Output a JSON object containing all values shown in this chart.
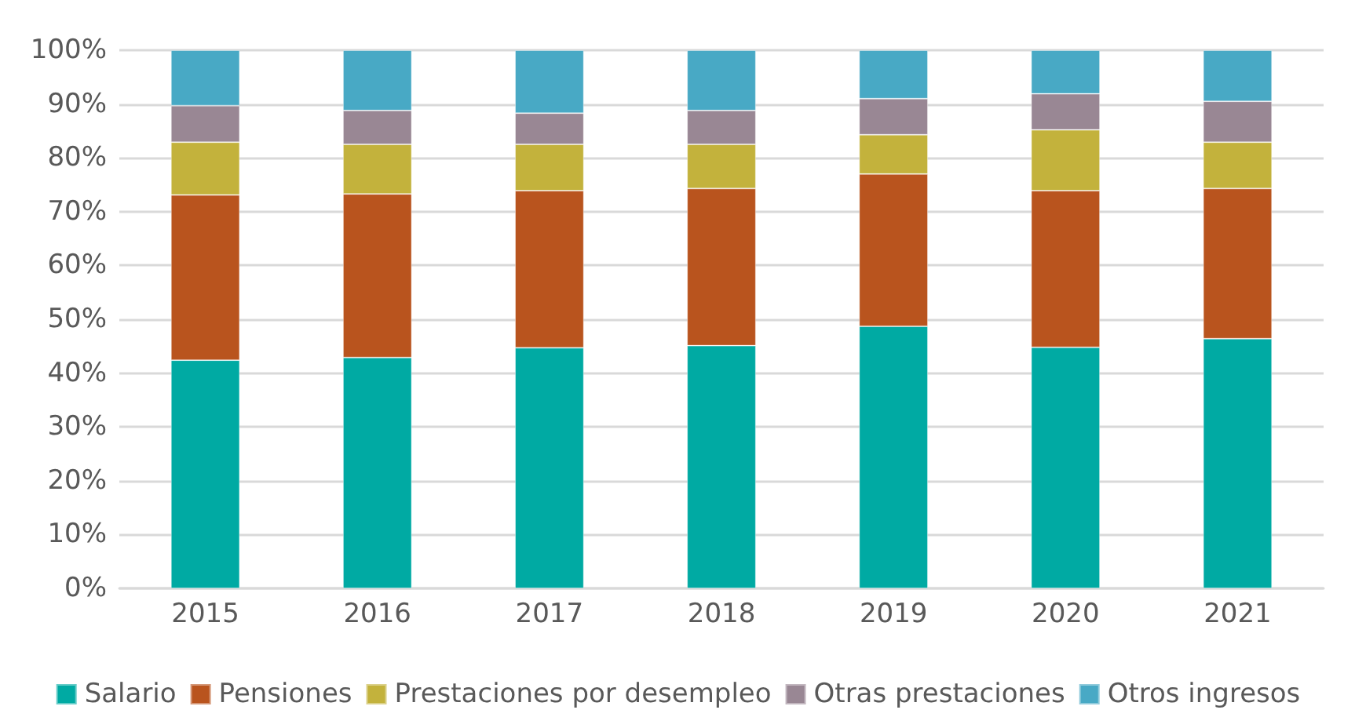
{
  "chart_data": {
    "type": "bar",
    "stacked": true,
    "categories": [
      "2015",
      "2016",
      "2017",
      "2018",
      "2019",
      "2020",
      "2021"
    ],
    "series": [
      {
        "name": "Salario",
        "color": "#00aaa3",
        "values": [
          42.4,
          42.9,
          44.7,
          45.1,
          48.7,
          44.8,
          46.4
        ]
      },
      {
        "name": "Pensiones",
        "color": "#b9541e",
        "values": [
          30.7,
          30.4,
          29.2,
          29.2,
          28.3,
          29.1,
          27.9
        ]
      },
      {
        "name": "Prestaciones por desempleo",
        "color": "#c3b23c",
        "values": [
          9.8,
          9.2,
          8.6,
          8.2,
          7.3,
          11.3,
          8.6
        ]
      },
      {
        "name": "Otras prestaciones",
        "color": "#998794",
        "values": [
          6.8,
          6.3,
          5.8,
          6.3,
          6.7,
          6.7,
          7.6
        ]
      },
      {
        "name": "Otros ingresos",
        "color": "#48a9c5",
        "values": [
          10.3,
          11.2,
          11.7,
          11.2,
          9.0,
          8.1,
          9.5
        ]
      }
    ],
    "ylim": [
      0,
      100
    ],
    "yticks": [
      {
        "value": 0,
        "label": "0%"
      },
      {
        "value": 10,
        "label": "10%"
      },
      {
        "value": 20,
        "label": "20%"
      },
      {
        "value": 30,
        "label": "30%"
      },
      {
        "value": 40,
        "label": "40%"
      },
      {
        "value": 50,
        "label": "50%"
      },
      {
        "value": 60,
        "label": "60%"
      },
      {
        "value": 70,
        "label": "70%"
      },
      {
        "value": 80,
        "label": "80%"
      },
      {
        "value": 90,
        "label": "90%"
      },
      {
        "value": 100,
        "label": "100%"
      }
    ],
    "grid": "y",
    "legend": "bottom"
  }
}
